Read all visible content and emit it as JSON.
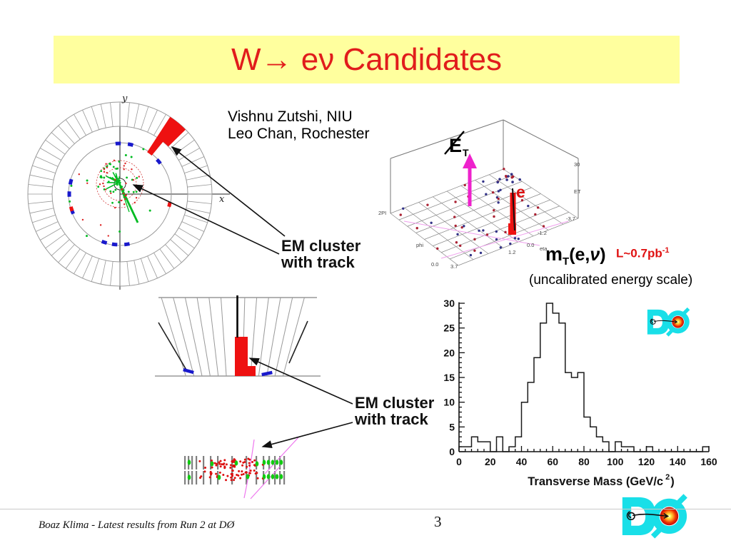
{
  "slide": {
    "title": "W→ eν Candidates",
    "footer": "Boaz Klima - Latest results from Run 2 at DØ",
    "page_number": "3"
  },
  "attribution": {
    "line1": "Vishnu Zutshi, NIU",
    "line2": "Leo Chan, Rochester"
  },
  "annotations": {
    "em_cluster_top": {
      "line1": "EM cluster",
      "line2": "with track"
    },
    "em_cluster_bottom": {
      "line1": "EM cluster",
      "line2": "with track"
    },
    "mt": {
      "m": "m",
      "sub": "T",
      "args_open": "(e,",
      "nu": "ν",
      "args_close": ")"
    },
    "luminosity": {
      "text": "L~0.7pb",
      "sup": "-1"
    },
    "energy_scale_note": "(uncalibrated energy scale)"
  },
  "event_display": {
    "x_axis_label": "x",
    "y_axis_label": "y"
  },
  "lego_plot": {
    "met": {
      "letter": "E",
      "sub": "T"
    },
    "electron_label": "e",
    "tick_labels": [
      "2PI",
      "phi",
      "0.0",
      "3.7",
      "1.2",
      "0.0",
      "eta",
      "-1.2",
      "-3.7",
      "ET",
      "30"
    ]
  },
  "chart_data": {
    "type": "bar",
    "subtype": "step_histogram",
    "title": "",
    "xlabel": "Transverse Mass (GeV/c²)",
    "xlabel_parts": {
      "main": "Transverse Mass (GeV/c",
      "sup": "2",
      "end": ")"
    },
    "ylabel": "",
    "xlim": [
      0,
      160
    ],
    "ylim": [
      0,
      31.5
    ],
    "bin_start": 0,
    "bin_width": 4,
    "x_ticks": [
      0,
      20,
      40,
      60,
      80,
      100,
      120,
      140,
      160
    ],
    "y_ticks": [
      0,
      5,
      10,
      15,
      20,
      25,
      30
    ],
    "x_minor_step": 4,
    "y_minor_step": 1,
    "grid": false,
    "legend": "none",
    "values": [
      1,
      1,
      3,
      2,
      2,
      0,
      3,
      0,
      1,
      3,
      10,
      14,
      19,
      26,
      30,
      28,
      26,
      16,
      15,
      16,
      7,
      5,
      3,
      2,
      0,
      2,
      1,
      1,
      0,
      0,
      1,
      0,
      0,
      0,
      0,
      0,
      0,
      0,
      0,
      1
    ]
  },
  "colors": {
    "banner_bg": "#ffff9e",
    "title_red": "#e11c1c",
    "accent_red": "#ee1111",
    "track_green": "#00bb22",
    "hit_blue": "#1919cc",
    "met_magenta": "#ee22cc",
    "logo_cyan": "#19dfe8",
    "line_gray": "#999999"
  }
}
